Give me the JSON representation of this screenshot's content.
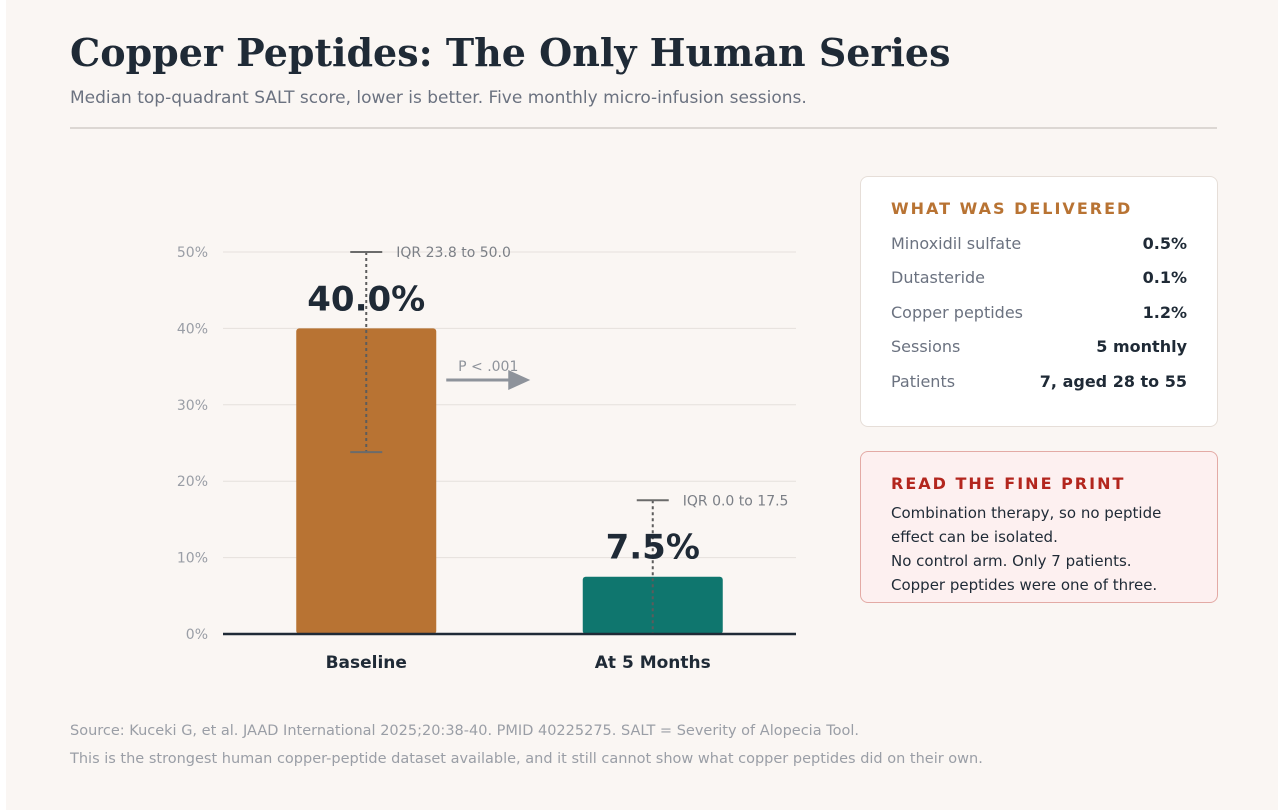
{
  "header": {
    "title": "Copper Peptides: The Only Human Series",
    "subtitle": "Median top-quadrant SALT score, lower is better. Five monthly micro-infusion sessions."
  },
  "chart_data": {
    "type": "bar",
    "categories": [
      "Baseline",
      "At 5 Months"
    ],
    "values": [
      40.0,
      7.5
    ],
    "value_labels": [
      "40.0%",
      "7.5%"
    ],
    "iqr": [
      [
        23.8,
        50.0
      ],
      [
        0.0,
        17.5
      ]
    ],
    "iqr_labels": [
      "IQR 23.8 to 50.0",
      "IQR 0.0 to 17.5"
    ],
    "annotation": "P < .001",
    "yticks": [
      0,
      10,
      20,
      30,
      40,
      50
    ],
    "ytick_labels": [
      "0%",
      "10%",
      "20%",
      "30%",
      "40%",
      "50%"
    ],
    "ylim": [
      0,
      50
    ],
    "grid": true,
    "colors": [
      "#b87333",
      "#0f766e"
    ],
    "title": "",
    "xlabel": "",
    "ylabel": ""
  },
  "delivered": {
    "heading": "WHAT WAS DELIVERED",
    "rows": [
      {
        "label": "Minoxidil sulfate",
        "value": "0.5%"
      },
      {
        "label": "Dutasteride",
        "value": "0.1%"
      },
      {
        "label": "Copper peptides",
        "value": "1.2%"
      },
      {
        "label": "Sessions",
        "value": "5 monthly"
      },
      {
        "label": "Patients",
        "value": "7, aged 28 to 55"
      }
    ]
  },
  "fine_print": {
    "heading": "READ THE FINE PRINT",
    "lines": [
      "Combination therapy, so no peptide",
      "effect can be isolated.",
      "No control arm. Only 7 patients.",
      "Copper peptides were one of three."
    ]
  },
  "footer": {
    "source": "Source: Kuceki G, et al. JAAD International 2025;20:38-40. PMID 40225275. SALT = Severity of Alopecia Tool.",
    "note": "This is the strongest human copper-peptide dataset available, and it still cannot show what copper peptides did on their own."
  }
}
